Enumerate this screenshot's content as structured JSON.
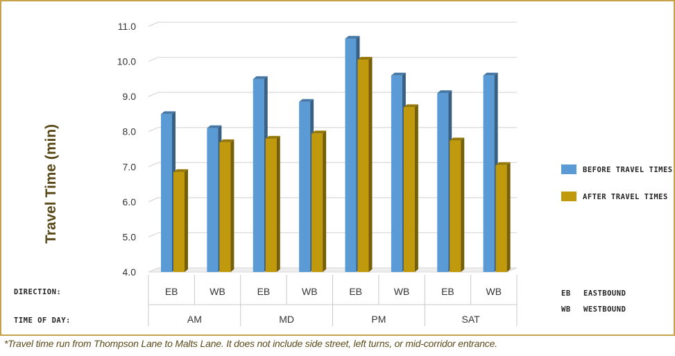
{
  "chart_data": {
    "type": "bar",
    "ylabel": "Travel Time (min)",
    "ylim": [
      4.0,
      11.0
    ],
    "yticks": [
      "4.0",
      "5.0",
      "6.0",
      "7.0",
      "8.0",
      "9.0",
      "10.0",
      "11.0"
    ],
    "grid": true,
    "legend_position": "right",
    "directions": [
      "EB",
      "WB",
      "EB",
      "WB",
      "EB",
      "WB",
      "EB",
      "WB"
    ],
    "time_of_day": [
      "AM",
      "MD",
      "PM",
      "SAT"
    ],
    "row_labels": {
      "direction": "DIRECTION:",
      "time": "TIME OF DAY:"
    },
    "series": [
      {
        "name": "BEFORE TRAVEL TIMES",
        "color": "#5b9bd5",
        "values": [
          8.5,
          8.1,
          9.5,
          8.85,
          10.65,
          9.6,
          9.1,
          9.6
        ]
      },
      {
        "name": "AFTER TRAVEL TIMES",
        "color": "#c09a0c",
        "values": [
          6.85,
          7.7,
          7.8,
          7.95,
          10.05,
          8.7,
          7.75,
          7.05
        ]
      }
    ],
    "abbreviations": [
      {
        "code": "EB",
        "meaning": "EASTBOUND"
      },
      {
        "code": "WB",
        "meaning": "WESTBOUND"
      }
    ]
  },
  "footnote": "*Travel time run from Thompson Lane to Malts Lane. It does not include side street, left turns, or mid-corridor entrance.",
  "colors": {
    "frame": "#c8a24a",
    "grid": "#d9d9d9"
  }
}
